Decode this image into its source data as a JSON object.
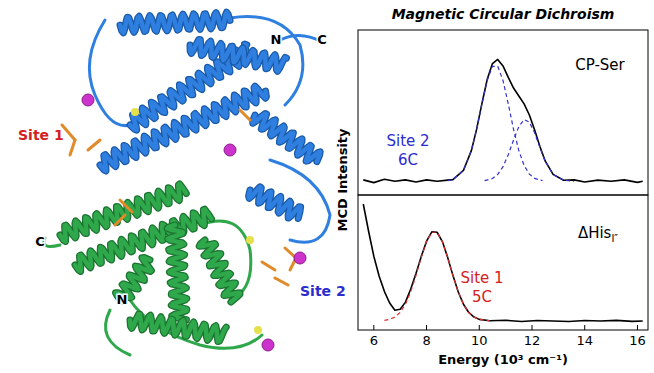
{
  "chart_data": [
    {
      "type": "line",
      "title": "Magnetic Circular Dichroism",
      "ylabel": "MCD Intensity",
      "xlim": [
        5.4,
        16.4
      ],
      "ylim": [
        -0.1,
        1.1
      ],
      "tick_labels": false,
      "series": [
        {
          "color": "#000000",
          "line_style": "solid",
          "x": [
            5.6,
            6.0,
            6.4,
            6.8,
            7.2,
            7.6,
            8.0,
            8.4,
            8.8,
            9.0,
            9.4,
            9.7,
            9.9,
            10.1,
            10.3,
            10.5,
            10.7,
            10.9,
            11.1,
            11.3,
            11.5,
            11.7,
            11.9,
            12.1,
            12.3,
            12.5,
            12.8,
            13.2,
            13.6,
            14.0,
            14.5,
            15.0,
            15.5,
            16.0,
            16.2
          ],
          "values": [
            0.01,
            -0.01,
            0.015,
            0.0,
            0.01,
            -0.005,
            0.01,
            0.0,
            0.008,
            0.012,
            0.079,
            0.223,
            0.379,
            0.564,
            0.74,
            0.856,
            0.886,
            0.839,
            0.755,
            0.678,
            0.62,
            0.563,
            0.482,
            0.373,
            0.253,
            0.148,
            0.05,
            0.007,
            0.01,
            -0.005,
            0.008,
            0.0,
            0.01,
            -0.008,
            0.0
          ]
        },
        {
          "color": "#3333cc",
          "line_style": "dashed",
          "x": [
            8.8,
            9.0,
            9.4,
            9.7,
            9.9,
            10.1,
            10.3,
            10.5,
            10.7,
            10.9,
            11.1,
            11.3,
            11.5,
            11.7,
            11.9,
            12.1,
            12.4
          ],
          "values": [
            0.004,
            0.012,
            0.079,
            0.223,
            0.378,
            0.562,
            0.733,
            0.836,
            0.836,
            0.733,
            0.562,
            0.378,
            0.223,
            0.115,
            0.052,
            0.021,
            0.004
          ]
        },
        {
          "color": "#3333cc",
          "line_style": "dashed",
          "x": [
            10.2,
            10.5,
            10.7,
            10.9,
            11.1,
            11.3,
            11.5,
            11.7,
            11.9,
            12.1,
            12.3,
            12.5,
            12.8,
            13.2,
            13.6
          ],
          "values": [
            0.004,
            0.02,
            0.05,
            0.106,
            0.193,
            0.3,
            0.397,
            0.448,
            0.43,
            0.352,
            0.246,
            0.146,
            0.05,
            0.007,
            0.0005
          ]
        }
      ],
      "annotations": [
        {
          "text": "CP-Ser",
          "color": "#000000"
        },
        {
          "text": "Site 2",
          "color": "#2b2bd0"
        },
        {
          "text": "6C",
          "color": "#2b2bd0"
        }
      ]
    },
    {
      "type": "line",
      "xlabel": "Energy (10³ cm⁻¹)",
      "xlim": [
        5.4,
        16.4
      ],
      "ylim": [
        -0.1,
        1.4
      ],
      "xticks": [
        6,
        8,
        10,
        12,
        14,
        16
      ],
      "tick_labels": "x",
      "series": [
        {
          "color": "#000000",
          "line_style": "solid",
          "x": [
            5.6,
            5.8,
            6.0,
            6.2,
            6.4,
            6.6,
            6.8,
            7.0,
            7.2,
            7.4,
            7.6,
            7.8,
            8.0,
            8.2,
            8.4,
            8.6,
            8.8,
            9.0,
            9.2,
            9.4,
            9.6,
            9.8,
            10.0,
            10.4,
            11.0,
            11.6,
            12.2,
            12.8,
            13.4,
            14.0,
            14.6,
            15.2,
            15.8,
            16.2
          ],
          "values": [
            1.3,
            1.0,
            0.72,
            0.5,
            0.33,
            0.2,
            0.12,
            0.13,
            0.21,
            0.355,
            0.527,
            0.717,
            0.887,
            0.99,
            0.986,
            0.882,
            0.707,
            0.507,
            0.325,
            0.186,
            0.095,
            0.044,
            0.018,
            0.002,
            0.008,
            -0.005,
            0.006,
            0.0,
            -0.006,
            0.005,
            0.0,
            0.007,
            -0.004,
            0.0
          ]
        },
        {
          "color": "#e03030",
          "line_style": "dashed",
          "x": [
            6.4,
            6.6,
            6.8,
            7.0,
            7.2,
            7.4,
            7.6,
            7.8,
            8.0,
            8.2,
            8.4,
            8.6,
            8.8,
            9.0,
            9.2,
            9.4,
            9.6,
            9.8,
            10.0,
            10.4
          ],
          "values": [
            0.007,
            0.018,
            0.044,
            0.095,
            0.186,
            0.325,
            0.507,
            0.707,
            0.882,
            0.986,
            0.986,
            0.882,
            0.707,
            0.507,
            0.325,
            0.186,
            0.095,
            0.044,
            0.018,
            0.002
          ]
        }
      ],
      "annotations": [
        {
          "text": "ΔHis",
          "subscript": "I″",
          "color": "#000000"
        },
        {
          "text": "Site 1",
          "color": "#d42020"
        },
        {
          "text": "5C",
          "color": "#d42020"
        }
      ]
    }
  ],
  "structure": {
    "labels": [
      {
        "text": "Site 1",
        "color": "#d42020"
      },
      {
        "text": "Site 2",
        "color": "#2b2bd0"
      },
      {
        "text": "N",
        "color": "#000000"
      },
      {
        "text": "C",
        "color": "#000000"
      },
      {
        "text": "C",
        "color": "#000000"
      },
      {
        "text": "N",
        "color": "#000000"
      }
    ]
  }
}
